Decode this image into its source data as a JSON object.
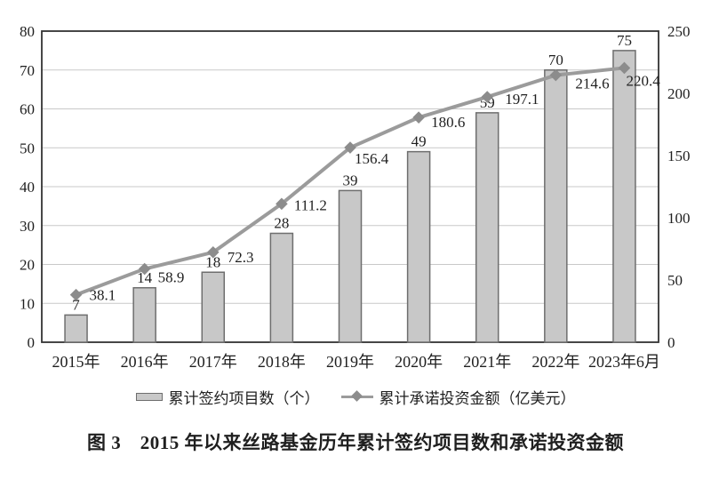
{
  "figure": {
    "caption": "图 3　2015 年以来丝路基金历年累计签约项目数和承诺投资金额"
  },
  "chart_data": {
    "type": "bar+line combo (dual axis)",
    "categories": [
      "2015年",
      "2016年",
      "2017年",
      "2018年",
      "2019年",
      "2020年",
      "2021年",
      "2022年",
      "2023年6月"
    ],
    "series": [
      {
        "name": "累计签约项目数（个）",
        "kind": "bar",
        "axis": "left",
        "values": [
          7,
          14,
          18,
          28,
          39,
          49,
          59,
          70,
          75
        ]
      },
      {
        "name": "累计承诺投资金额（亿美元）",
        "kind": "line",
        "axis": "right",
        "values": [
          38.1,
          58.9,
          72.3,
          111.2,
          156.4,
          180.6,
          197.1,
          214.6,
          220.4
        ],
        "label_offsets": [
          [
            15,
            0
          ],
          [
            15,
            9
          ],
          [
            16,
            5
          ],
          [
            14,
            1
          ],
          [
            5,
            12
          ],
          [
            14,
            5
          ],
          [
            20,
            2
          ],
          [
            22,
            9
          ],
          [
            2,
            14
          ]
        ]
      }
    ],
    "left_axis": {
      "min": 0,
      "max": 80,
      "ticks": [
        0,
        10,
        20,
        30,
        40,
        50,
        60,
        70,
        80
      ]
    },
    "right_axis": {
      "min": 0,
      "max": 250,
      "ticks": [
        0,
        50,
        100,
        150,
        200,
        250
      ]
    },
    "grid": "horizontal lines at every left-axis step of 10",
    "legend_position": "bottom",
    "colors": {
      "bar_fill": "#c8c8c8",
      "bar_stroke": "#6e6e6e",
      "line": "#9b9b9b",
      "marker": "#8c8c8c",
      "grid": "#c9c9c9",
      "border": "#333333",
      "text": "#1f1f1f",
      "background": "#ffffff"
    }
  }
}
